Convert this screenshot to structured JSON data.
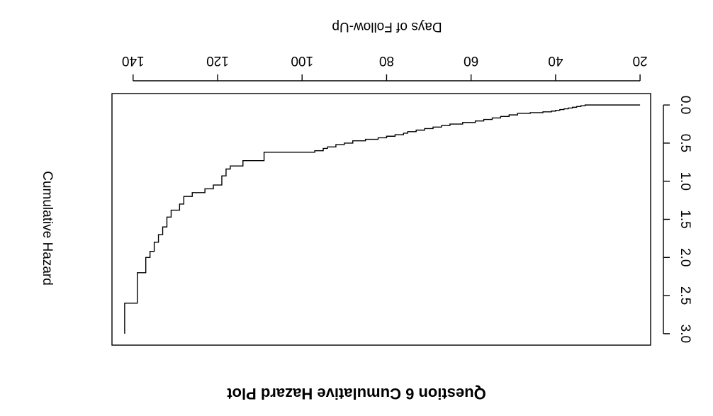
{
  "chart_data": {
    "type": "line",
    "step": true,
    "title": "Question 6 Cumulative Hazard Plot",
    "xlabel": "Days of Follow-Up",
    "ylabel": "Cumulative Hazard",
    "xlim": [
      17.5,
      145
    ],
    "ylim": [
      -0.15,
      3.15
    ],
    "xticks": [
      20,
      40,
      60,
      80,
      100,
      120,
      140
    ],
    "yticks": [
      0.0,
      0.5,
      1.0,
      1.5,
      2.0,
      2.5,
      3.0
    ],
    "ytick_labels": [
      "0.0",
      "0.5",
      "1.0",
      "1.5",
      "2.0",
      "2.5",
      "3.0"
    ],
    "orientation": "rotated 180 degrees",
    "series": [
      {
        "x": [
          20,
          33,
          34,
          35,
          36,
          37,
          38,
          39,
          40,
          41,
          43,
          46,
          49,
          51,
          53,
          55,
          57,
          59,
          62,
          65,
          67,
          69,
          71,
          73,
          75,
          76,
          78,
          80,
          82,
          85,
          88,
          90,
          92,
          94,
          95,
          97,
          99,
          101,
          103,
          105,
          109,
          114,
          117,
          118,
          119,
          121,
          123,
          126,
          128,
          129,
          131,
          132,
          133,
          134,
          135,
          136,
          137,
          139,
          142
        ],
        "y": [
          0.0,
          0.01,
          0.02,
          0.03,
          0.04,
          0.05,
          0.06,
          0.07,
          0.08,
          0.09,
          0.1,
          0.11,
          0.13,
          0.15,
          0.17,
          0.19,
          0.21,
          0.23,
          0.25,
          0.27,
          0.29,
          0.31,
          0.33,
          0.35,
          0.37,
          0.39,
          0.41,
          0.43,
          0.45,
          0.47,
          0.5,
          0.52,
          0.55,
          0.57,
          0.6,
          0.62,
          0.62,
          0.62,
          0.62,
          0.62,
          0.73,
          0.8,
          0.84,
          0.93,
          1.05,
          1.1,
          1.15,
          1.2,
          1.3,
          1.38,
          1.47,
          1.6,
          1.7,
          1.8,
          1.92,
          2.0,
          2.2,
          2.6,
          3.0
        ]
      }
    ],
    "grid": false,
    "legend": "none"
  }
}
